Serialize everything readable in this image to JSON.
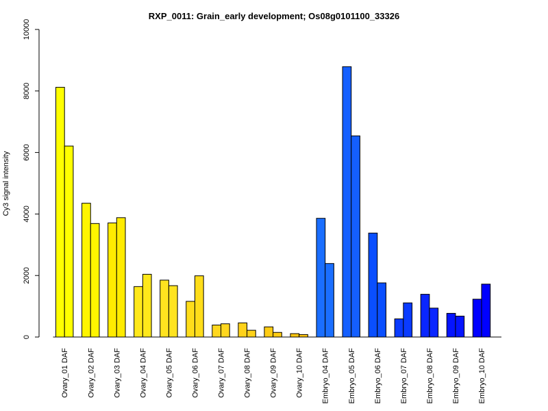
{
  "chart_data": {
    "type": "bar",
    "title": "RXP_0011: Grain_early development; Os08g0101100_33326",
    "xlabel": "",
    "ylabel": "Cy3 signal intensity",
    "ylim": [
      0,
      10000
    ],
    "yticks": [
      "0",
      "2000",
      "4000",
      "6000",
      "8000",
      "10000"
    ],
    "legend": "none",
    "grid": false,
    "categories": [
      "Ovary_01 DAF",
      "Ovary_02 DAF",
      "Ovary_03 DAF",
      "Ovary_04 DAF",
      "Ovary_05 DAF",
      "Ovary_06 DAF",
      "Ovary_07 DAF",
      "Ovary_08 DAF",
      "Ovary_09 DAF",
      "Ovary_10 DAF",
      "Embryo_04 DAF",
      "Embryo_05 DAF",
      "Embryo_06 DAF",
      "Embryo_07 DAF",
      "Embryo_08 DAF",
      "Embryo_09 DAF",
      "Embryo_10 DAF"
    ],
    "group_colors": [
      "#FFFF00",
      "#FFF500",
      "#FFEB00",
      "#FFE81A",
      "#FFE31F",
      "#FFDD1A",
      "#FFD71F",
      "#FFD21A",
      "#FFCC14",
      "#FFC60F",
      "#1A6EFF",
      "#145FFF",
      "#0A4FFF",
      "#0A3BFF",
      "#0A26FF",
      "#0514FF",
      "#0000FF"
    ],
    "series": [
      {
        "values": [
          8120,
          4350,
          3710,
          1640,
          1850,
          1160,
          390,
          460,
          330,
          110,
          3860,
          8790,
          3380,
          590,
          1390,
          770,
          1230
        ]
      },
      {
        "values": [
          6210,
          3690,
          3880,
          2040,
          1670,
          1990,
          430,
          220,
          150,
          80,
          2390,
          6540,
          1760,
          1110,
          940,
          680,
          1720
        ]
      }
    ]
  }
}
